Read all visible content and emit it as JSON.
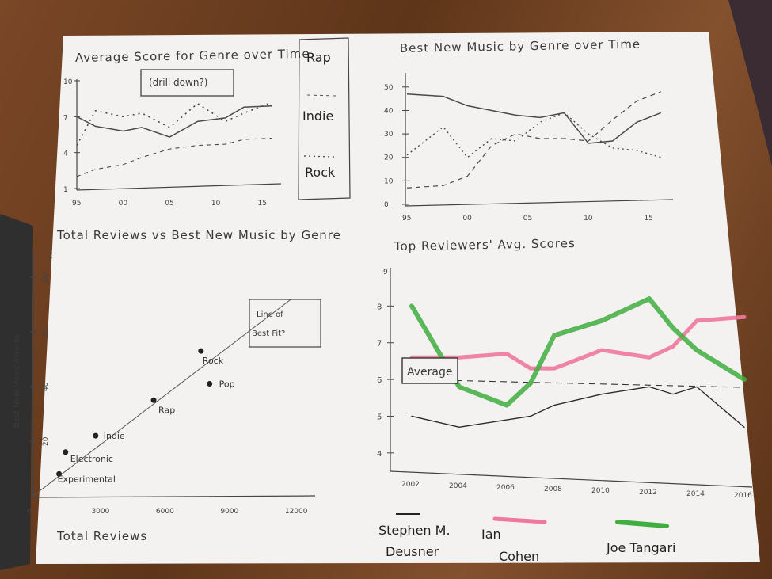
{
  "charts": {
    "avg_score": {
      "title": "Average Score for Genre over Time",
      "button": "(drill down?)",
      "legend": [
        "Rap",
        "Indie",
        "Rock"
      ],
      "yticks": [
        "10",
        "7",
        "4",
        "1"
      ],
      "xticks": [
        "95",
        "00",
        "05",
        "10",
        "15"
      ]
    },
    "bnm": {
      "title": "Best New Music by Genre over Time",
      "yticks": [
        "50",
        "40",
        "30",
        "20",
        "10",
        "0"
      ],
      "xticks": [
        "95",
        "00",
        "05",
        "10",
        "15"
      ]
    },
    "scatter": {
      "title": "Total Reviews vs Best New Music by Genre",
      "xlabel": "Total Reviews",
      "ylabel": "Best New Music Awards",
      "annotation_line1": "Line of",
      "annotation_line2": "Best Fit?",
      "xticks": [
        "0",
        "3000",
        "6000",
        "9000",
        "12000"
      ],
      "yticks": [
        "20",
        "40",
        "60",
        "80"
      ],
      "ytop": "Z"
    },
    "reviewers": {
      "title": "Top Reviewers' Avg. Scores",
      "average_label": "Average",
      "yticks": [
        "8",
        "7",
        "6",
        "5",
        "4"
      ],
      "ytop": "9",
      "xticks": [
        "2002",
        "2004",
        "2006",
        "2008",
        "2010",
        "2012",
        "2014",
        "2016"
      ],
      "legend": [
        {
          "line1": "Stephen M.",
          "line2": "Deusner"
        },
        {
          "line1": "Ian",
          "line2": "Cohen"
        },
        {
          "line1": "Joe Tangari",
          "line2": ""
        }
      ]
    }
  },
  "chart_data": [
    {
      "type": "line",
      "title": "Average Score for Genre over Time",
      "xlabel": "",
      "ylabel": "",
      "x": [
        1995,
        1997,
        2000,
        2002,
        2005,
        2008,
        2011,
        2013,
        2016
      ],
      "series": [
        {
          "name": "Rap",
          "values": [
            7.0,
            6.2,
            5.8,
            6.1,
            5.3,
            6.6,
            6.9,
            7.8,
            7.9
          ]
        },
        {
          "name": "Indie",
          "values": [
            2.0,
            2.6,
            3.0,
            3.6,
            4.3,
            4.6,
            4.7,
            5.1,
            5.2
          ]
        },
        {
          "name": "Rock",
          "values": [
            4.6,
            7.5,
            7.0,
            7.3,
            6.1,
            8.1,
            6.6,
            7.3,
            8.2
          ]
        }
      ],
      "ylim": [
        1,
        10
      ],
      "xlim": [
        1995,
        2017
      ]
    },
    {
      "type": "line",
      "title": "Best New Music by Genre over Time",
      "xlabel": "",
      "ylabel": "",
      "x": [
        1995,
        1998,
        2000,
        2002,
        2004,
        2006,
        2008,
        2010,
        2012,
        2014,
        2016
      ],
      "series": [
        {
          "name": "",
          "values": [
            47,
            46,
            42,
            40,
            38,
            37,
            39,
            26,
            27,
            35,
            39
          ]
        },
        {
          "name": "",
          "values": [
            7,
            8,
            12,
            25,
            30,
            28,
            28,
            27,
            36,
            44,
            48
          ]
        },
        {
          "name": "",
          "values": [
            21,
            33,
            20,
            28,
            27,
            35,
            39,
            30,
            24,
            23,
            20
          ]
        }
      ],
      "ylim": [
        0,
        55
      ],
      "xlim": [
        1995,
        2017
      ]
    },
    {
      "type": "scatter",
      "title": "Total Reviews vs Best New Music by Genre",
      "xlabel": "Total Reviews",
      "ylabel": "Best New Music Awards",
      "points": [
        {
          "label": "Experimental",
          "x": 1200,
          "y": 8
        },
        {
          "label": "Electronic",
          "x": 1500,
          "y": 16
        },
        {
          "label": "Indie",
          "x": 2900,
          "y": 22
        },
        {
          "label": "Rap",
          "x": 5600,
          "y": 35
        },
        {
          "label": "Rock",
          "x": 7800,
          "y": 53
        },
        {
          "label": "Pop",
          "x": 8200,
          "y": 41
        }
      ],
      "fit_line": [
        [
          0,
          0
        ],
        [
          12000,
          72
        ]
      ],
      "xlim": [
        0,
        13000
      ],
      "ylim": [
        0,
        80
      ]
    },
    {
      "type": "line",
      "title": "Top Reviewers' Avg. Scores",
      "xlabel": "",
      "ylabel": "",
      "x": [
        2002,
        2004,
        2006,
        2007,
        2008,
        2010,
        2012,
        2013,
        2014,
        2016
      ],
      "series": [
        {
          "name": "Stephen M. Deusner",
          "values": [
            5.0,
            4.7,
            4.9,
            5.0,
            5.3,
            5.6,
            5.8,
            5.6,
            5.8,
            4.7
          ]
        },
        {
          "name": "Ian Cohen",
          "values": [
            6.6,
            6.6,
            6.7,
            6.3,
            6.3,
            6.8,
            6.6,
            6.9,
            7.6,
            7.7
          ]
        },
        {
          "name": "Joe Tangari",
          "values": [
            8.0,
            5.8,
            5.3,
            5.9,
            7.2,
            7.6,
            8.2,
            7.4,
            6.8,
            6.0
          ]
        }
      ],
      "average": 6.0,
      "ylim": [
        3.5,
        9
      ],
      "xlim": [
        2002,
        2016
      ]
    }
  ],
  "colors": {
    "paper": "#f3f2f0",
    "ink": "#3a3a3a",
    "pink": "#f0789c",
    "green": "#3fae3f"
  }
}
